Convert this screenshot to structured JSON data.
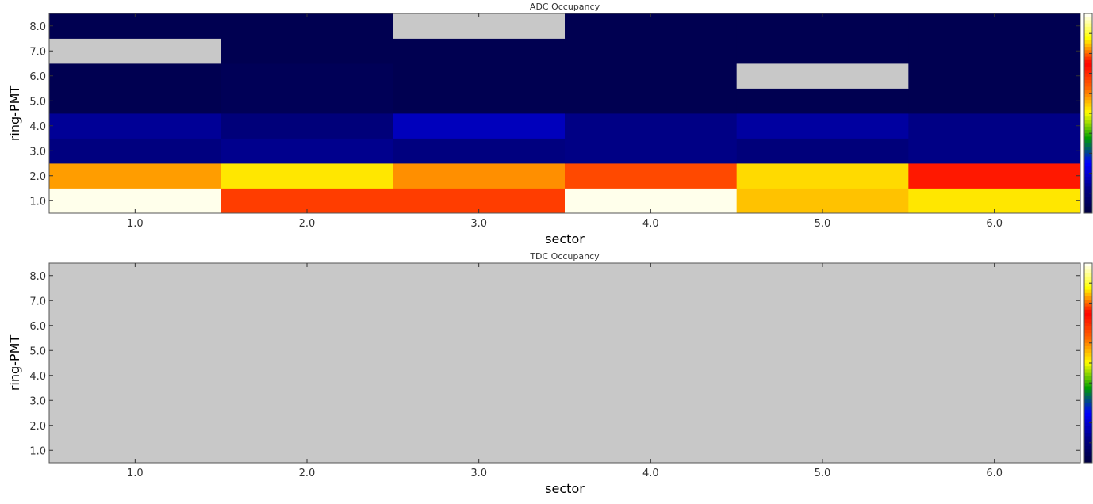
{
  "colors": {
    "missing": "#c8c8c8",
    "frame": "#555555",
    "colormap": [
      "#000040",
      "#000088",
      "#0000ff",
      "#00a000",
      "#ffff00",
      "#ff6600",
      "#ff0000",
      "#ffff00",
      "#ffffff"
    ]
  },
  "chart_data": [
    {
      "type": "heatmap",
      "title": "ADC Occupancy",
      "xlabel": "sector",
      "ylabel": "ring-PMT",
      "x": [
        1.0,
        2.0,
        3.0,
        4.0,
        5.0,
        6.0
      ],
      "y": [
        1.0,
        2.0,
        3.0,
        4.0,
        5.0,
        6.0,
        7.0,
        8.0
      ],
      "xticks": [
        "1.0",
        "2.0",
        "3.0",
        "4.0",
        "5.0",
        "6.0"
      ],
      "yticks": [
        "1.0",
        "2.0",
        "3.0",
        "4.0",
        "5.0",
        "6.0",
        "7.0",
        "8.0"
      ],
      "xlim": [
        0.5,
        6.5
      ],
      "ylim": [
        0.5,
        8.5
      ],
      "zlim": [
        0,
        1
      ],
      "colorbar": "right",
      "values": [
        [
          0.99,
          0.78,
          0.78,
          0.99,
          0.55,
          0.52
        ],
        [
          0.58,
          0.52,
          0.82,
          0.66,
          0.53,
          0.72
        ],
        [
          0.11,
          0.13,
          0.11,
          0.12,
          0.1,
          0.12
        ],
        [
          0.14,
          0.1,
          0.18,
          0.12,
          0.15,
          0.12
        ],
        [
          0.03,
          0.04,
          0.03,
          0.03,
          0.03,
          0.03
        ],
        [
          0.03,
          0.04,
          0.03,
          0.03,
          null,
          0.03
        ],
        [
          null,
          0.03,
          0.03,
          0.03,
          0.03,
          0.03
        ],
        [
          0.03,
          0.03,
          null,
          0.03,
          0.03,
          0.03
        ]
      ]
    },
    {
      "type": "heatmap",
      "title": "TDC Occupancy",
      "xlabel": "sector",
      "ylabel": "ring-PMT",
      "x": [
        1.0,
        2.0,
        3.0,
        4.0,
        5.0,
        6.0
      ],
      "y": [
        1.0,
        2.0,
        3.0,
        4.0,
        5.0,
        6.0,
        7.0,
        8.0
      ],
      "xticks": [
        "1.0",
        "2.0",
        "3.0",
        "4.0",
        "5.0",
        "6.0"
      ],
      "yticks": [
        "1.0",
        "2.0",
        "3.0",
        "4.0",
        "5.0",
        "6.0",
        "7.0",
        "8.0"
      ],
      "xlim": [
        0.5,
        6.5
      ],
      "ylim": [
        0.5,
        8.5
      ],
      "zlim": [
        0,
        1
      ],
      "colorbar": "right",
      "values": [
        [
          null,
          null,
          null,
          null,
          null,
          null
        ],
        [
          null,
          null,
          null,
          null,
          null,
          null
        ],
        [
          null,
          null,
          null,
          null,
          null,
          null
        ],
        [
          null,
          null,
          null,
          null,
          null,
          null
        ],
        [
          null,
          null,
          null,
          null,
          null,
          null
        ],
        [
          null,
          null,
          null,
          null,
          null,
          null
        ],
        [
          null,
          null,
          null,
          null,
          null,
          null
        ],
        [
          null,
          null,
          null,
          null,
          null,
          null
        ]
      ]
    }
  ]
}
